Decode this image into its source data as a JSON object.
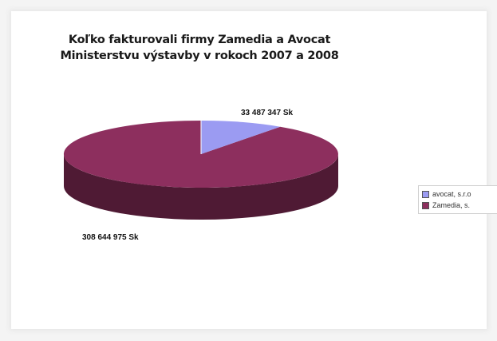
{
  "chart_data": {
    "type": "pie",
    "title_lines": [
      "Koľko fakturovali firmy Zamedia a Avocat",
      "Ministerstvu výstavby v rokoch 2007 a 2008"
    ],
    "slices": [
      {
        "label": "avocat, s.r.o",
        "value": 33487347,
        "value_label": "33 487 347 Sk",
        "color": "#9b9bf2",
        "side_color": "#7878d0"
      },
      {
        "label": "Zamedia, s.",
        "value": 308644975,
        "value_label": "308 644 975 Sk",
        "color": "#8d2f5e",
        "side_color": "#4f1a34"
      }
    ],
    "legend_position": "right",
    "three_d": true
  }
}
